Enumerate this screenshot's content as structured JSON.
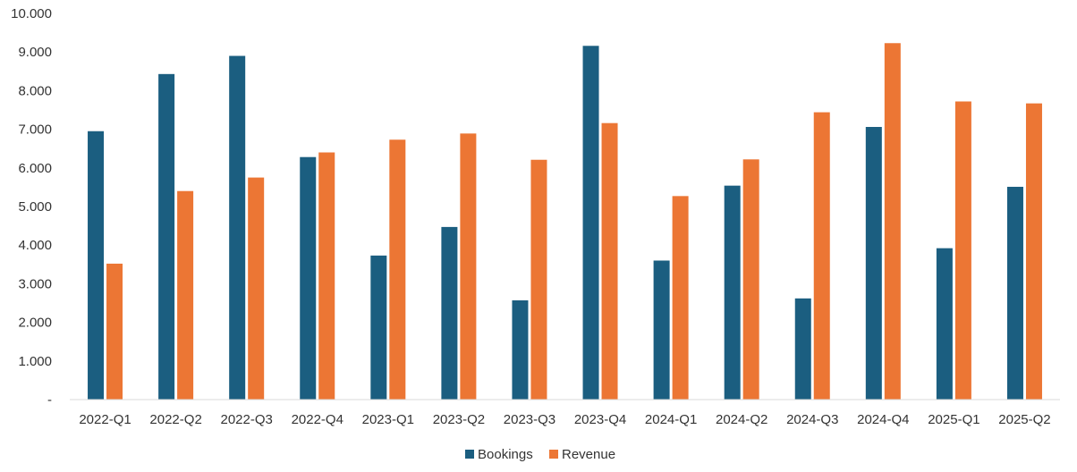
{
  "chart_data": {
    "type": "bar",
    "categories": [
      "2022-Q1",
      "2022-Q2",
      "2022-Q3",
      "2022-Q4",
      "2023-Q1",
      "2023-Q2",
      "2023-Q3",
      "2023-Q4",
      "2024-Q1",
      "2024-Q2",
      "2024-Q3",
      "2024-Q4",
      "2025-Q1",
      "2025-Q2"
    ],
    "series": [
      {
        "name": "Bookings",
        "color": "#1b5e80",
        "values": [
          6950,
          8430,
          8900,
          6280,
          3730,
          4470,
          2570,
          9160,
          3600,
          5540,
          2620,
          7060,
          3920,
          5510
        ]
      },
      {
        "name": "Revenue",
        "color": "#ec7634",
        "values": [
          3520,
          5400,
          5750,
          6400,
          6730,
          6890,
          6210,
          7160,
          5270,
          6220,
          7440,
          9230,
          7720,
          7670
        ]
      }
    ],
    "y_ticks": [
      "-",
      "1.000",
      "2.000",
      "3.000",
      "4.000",
      "5.000",
      "6.000",
      "7.000",
      "8.000",
      "9.000",
      "10.000"
    ],
    "ylim": [
      0,
      10000
    ],
    "grid": false,
    "legend_position": "bottom"
  }
}
